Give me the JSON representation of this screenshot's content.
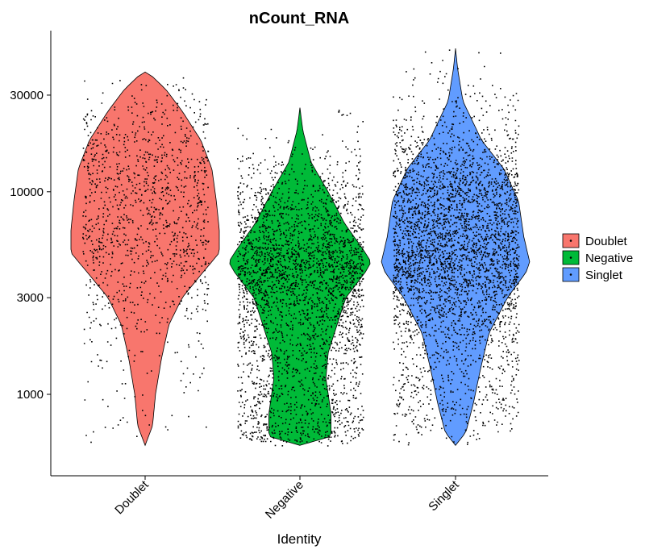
{
  "chart_data": {
    "type": "violin",
    "title": "nCount_RNA",
    "xlabel": "Identity",
    "ylabel": "",
    "y_scale": "log10",
    "y_ticks": [
      1000,
      3000,
      10000,
      30000
    ],
    "y_tick_labels": [
      "1000",
      "3000",
      "10000",
      "30000"
    ],
    "ylim": [
      430,
      60000
    ],
    "categories": [
      "Doublet",
      "Negative",
      "Singlet"
    ],
    "legend": {
      "title": "",
      "position": "right"
    },
    "series": [
      {
        "name": "Doublet",
        "color": "#F8766D",
        "min": 560,
        "max": 39000,
        "shape": [
          [
            560,
            0.0
          ],
          [
            700,
            0.1
          ],
          [
            1000,
            0.14
          ],
          [
            1500,
            0.22
          ],
          [
            2200,
            0.32
          ],
          [
            3000,
            0.5
          ],
          [
            4000,
            0.78
          ],
          [
            5000,
            1.0
          ],
          [
            6500,
            1.0
          ],
          [
            9000,
            0.96
          ],
          [
            13000,
            0.9
          ],
          [
            18000,
            0.75
          ],
          [
            25000,
            0.5
          ],
          [
            32000,
            0.28
          ],
          [
            37000,
            0.1
          ],
          [
            39000,
            0.0
          ]
        ],
        "points": 1200
      },
      {
        "name": "Negative",
        "color": "#00BA38",
        "min": 560,
        "max": 26000,
        "shape": [
          [
            560,
            0.0
          ],
          [
            620,
            0.42
          ],
          [
            800,
            0.42
          ],
          [
            1200,
            0.35
          ],
          [
            1600,
            0.38
          ],
          [
            2200,
            0.5
          ],
          [
            3000,
            0.62
          ],
          [
            4000,
            0.88
          ],
          [
            4500,
            0.96
          ],
          [
            5200,
            0.85
          ],
          [
            7000,
            0.6
          ],
          [
            10000,
            0.38
          ],
          [
            14000,
            0.15
          ],
          [
            20000,
            0.04
          ],
          [
            26000,
            0.0
          ]
        ],
        "points": 3000
      },
      {
        "name": "Singlet",
        "color": "#619CFF",
        "min": 560,
        "max": 51000,
        "shape": [
          [
            560,
            0.0
          ],
          [
            650,
            0.14
          ],
          [
            900,
            0.24
          ],
          [
            1300,
            0.33
          ],
          [
            2000,
            0.45
          ],
          [
            3000,
            0.7
          ],
          [
            4000,
            0.95
          ],
          [
            4500,
            1.0
          ],
          [
            6000,
            0.92
          ],
          [
            9000,
            0.85
          ],
          [
            13000,
            0.65
          ],
          [
            18000,
            0.35
          ],
          [
            28000,
            0.1
          ],
          [
            40000,
            0.03
          ],
          [
            51000,
            0.0
          ]
        ],
        "points": 3600
      }
    ]
  }
}
